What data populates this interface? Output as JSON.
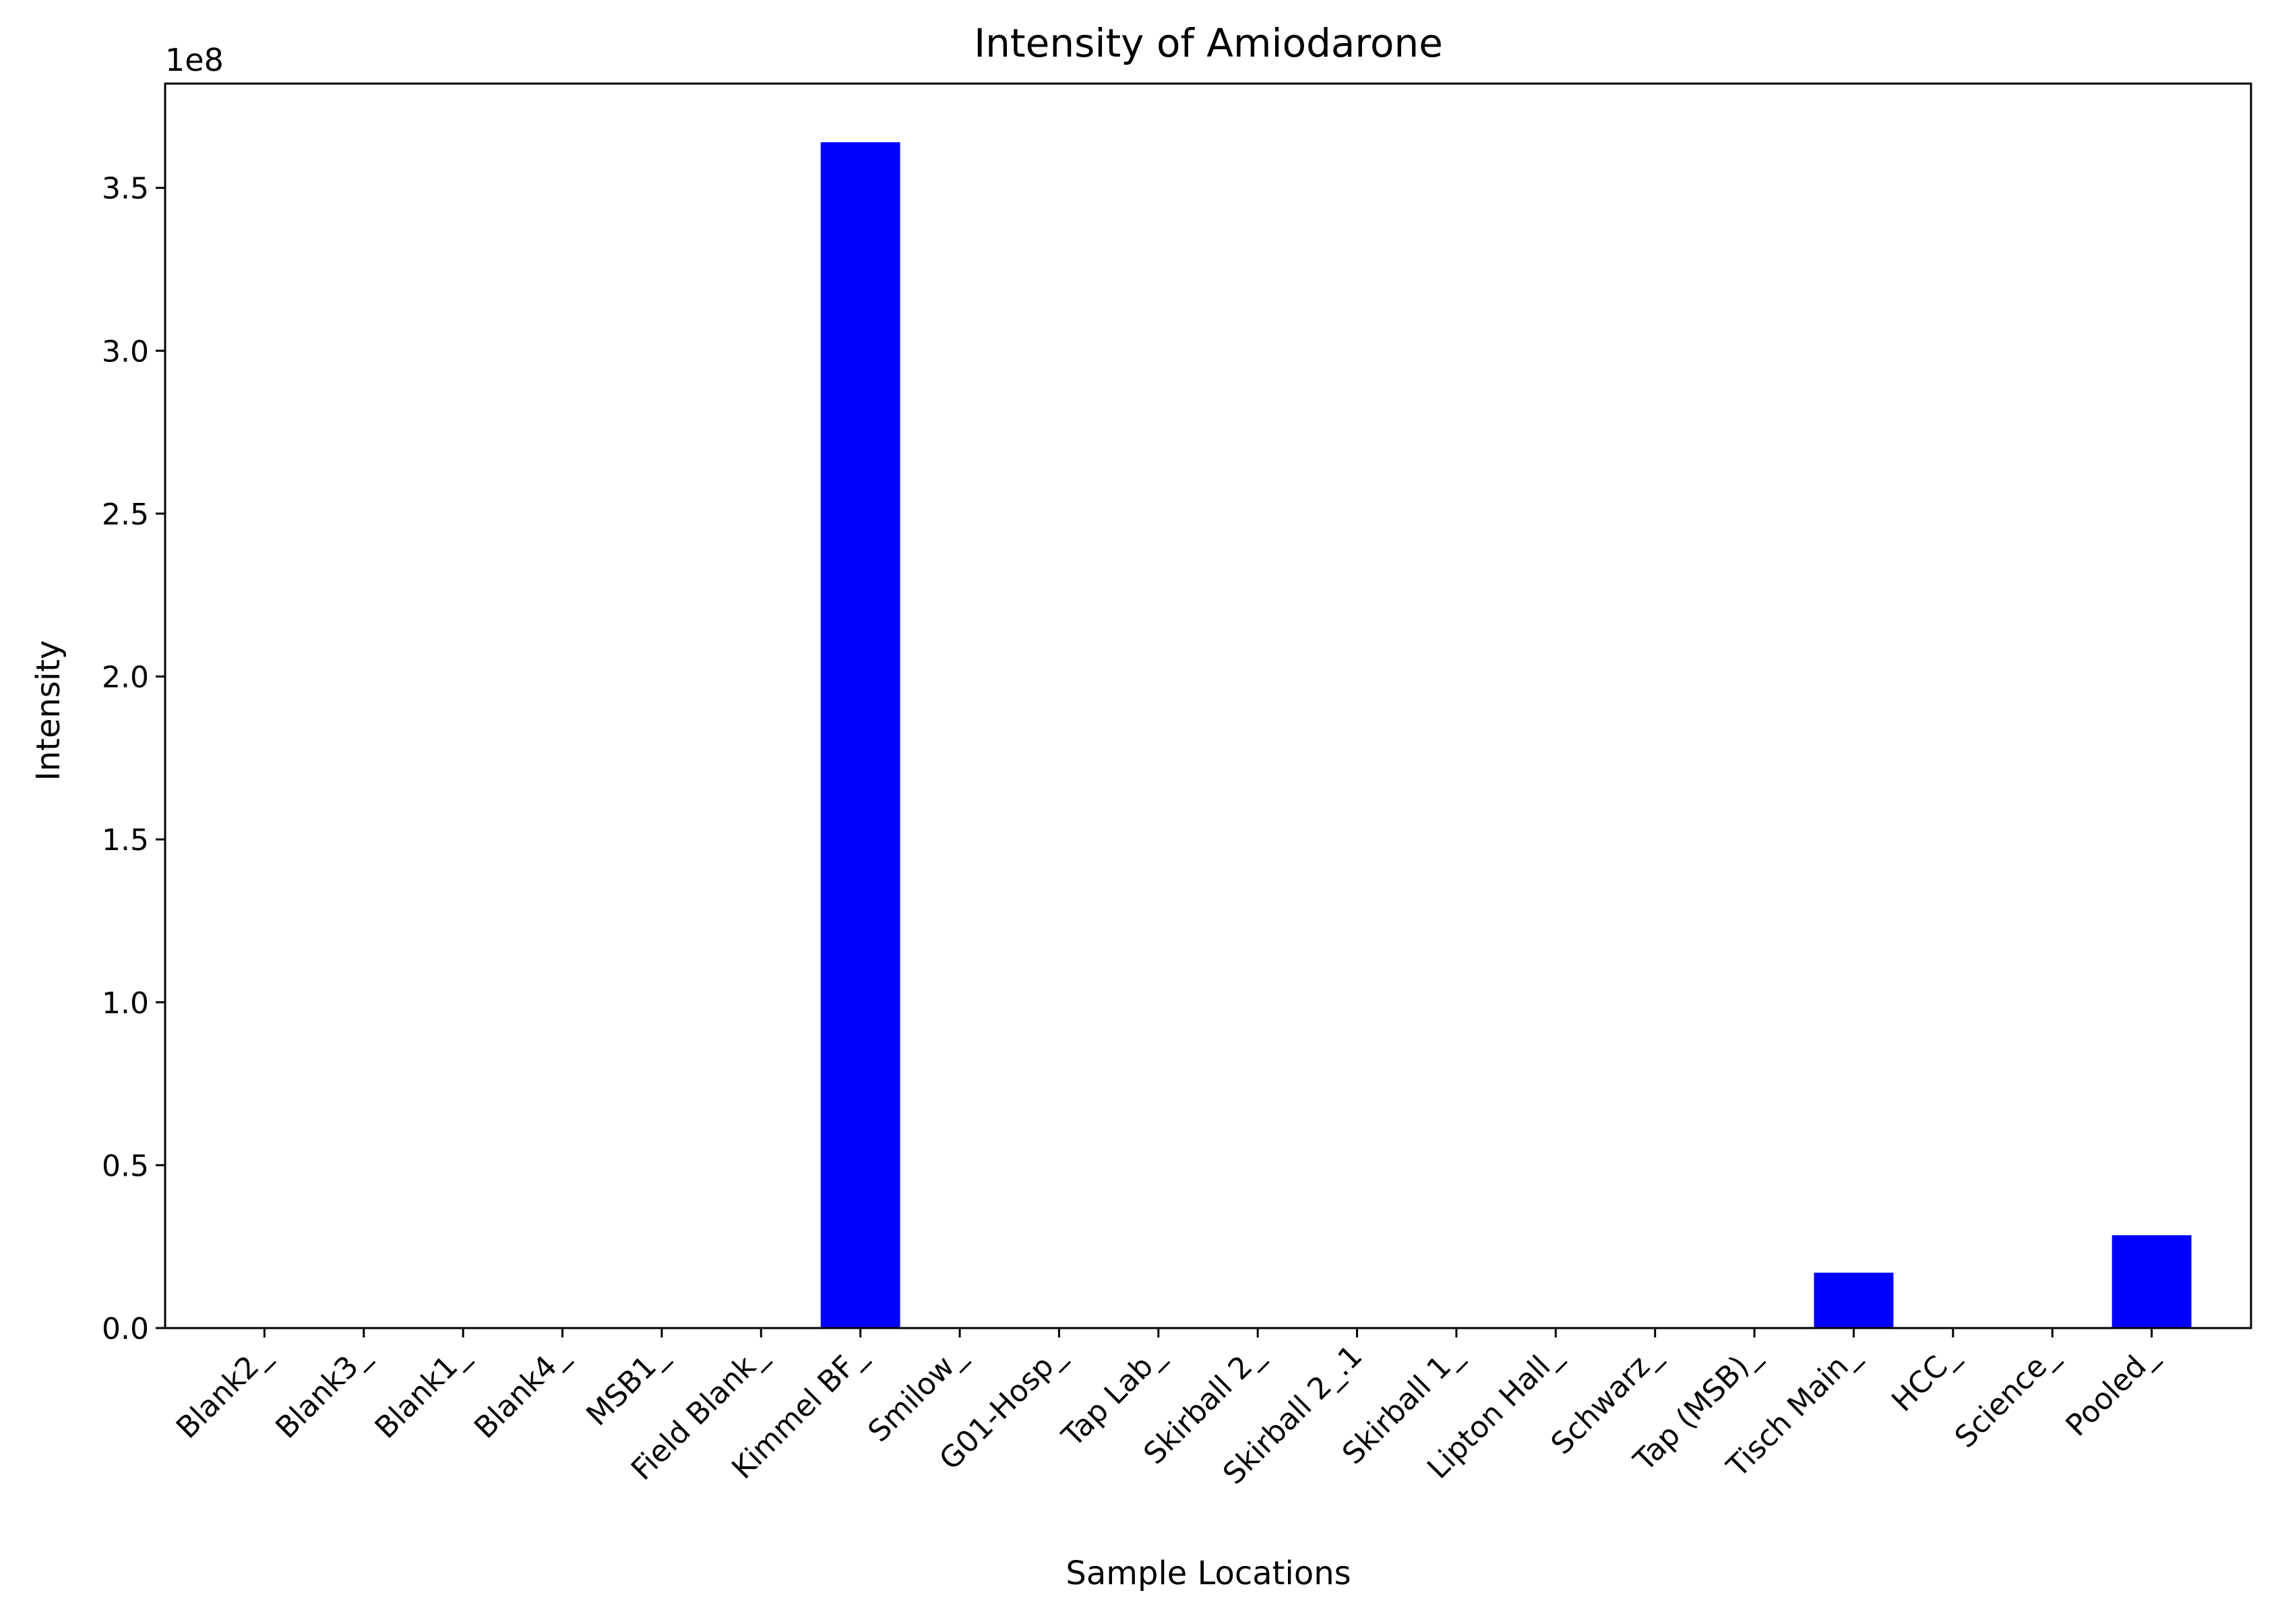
{
  "chart_data": {
    "type": "bar",
    "title": "Intensity of Amiodarone",
    "xlabel": "Sample Locations",
    "ylabel": "Intensity",
    "y_offset_label": "1e8",
    "ylim": [
      0,
      382000000
    ],
    "yticks": [
      0,
      50000000,
      100000000,
      150000000,
      200000000,
      250000000,
      300000000,
      350000000
    ],
    "ytick_labels": [
      "0.0",
      "0.5",
      "1.0",
      "1.5",
      "2.0",
      "2.5",
      "3.0",
      "3.5"
    ],
    "grid": false,
    "legend": "none",
    "bar_color": "#0000ff",
    "categories": [
      "Blank2_",
      "Blank3_",
      "Blank1_",
      "Blank4_",
      "MSB1_",
      "Field Blank_",
      "Kimmel BF_",
      "Smilow_",
      "G01-Hosp_",
      "Tap Lab_",
      "Skirball 2_",
      "Skirball 2_.1",
      "Skirball 1_",
      "Lipton Hall_",
      "Schwarz_",
      "Tap (MSB)_",
      "Tisch Main_",
      "HCC_",
      "Science_",
      "Pooled_"
    ],
    "values": [
      0,
      0,
      0,
      0,
      0,
      0,
      364000000,
      0,
      0,
      0,
      0,
      0,
      0,
      0,
      0,
      0,
      17000000,
      0,
      0,
      28500000
    ]
  }
}
